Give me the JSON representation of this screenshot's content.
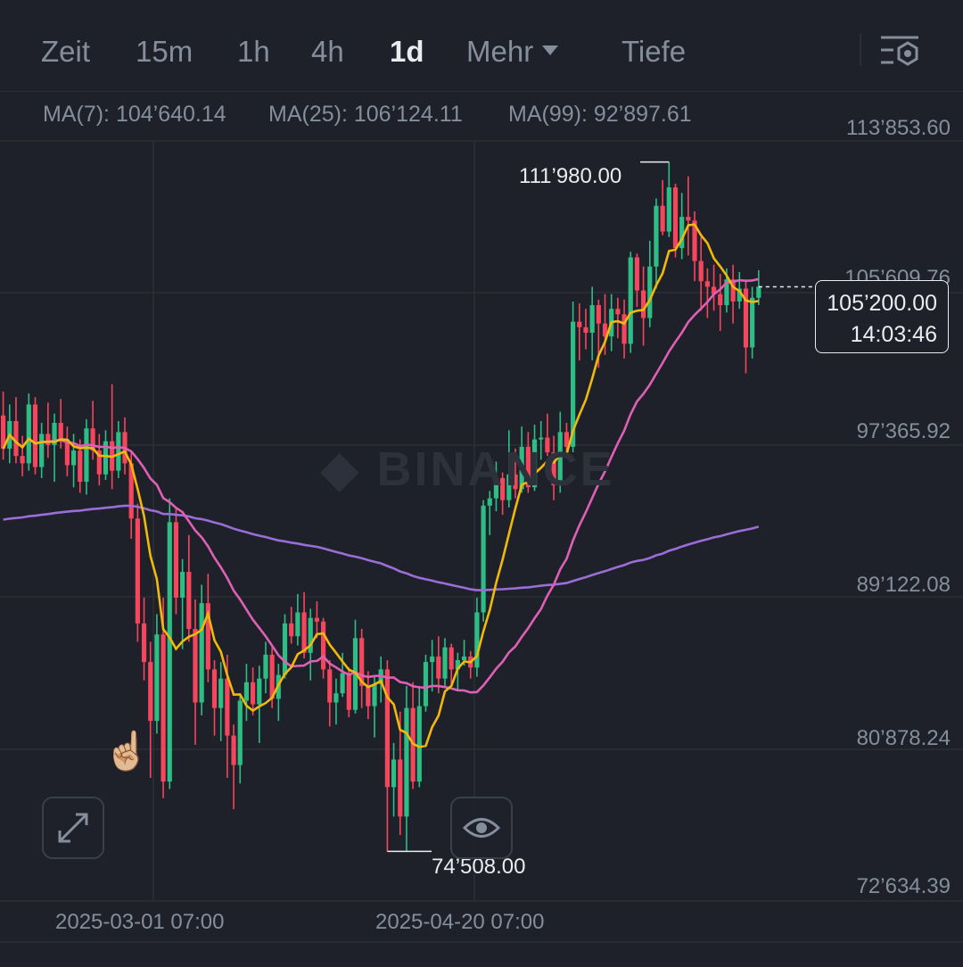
{
  "toolbar": {
    "tabs": [
      {
        "label": "Zeit",
        "active": false
      },
      {
        "label": "15m",
        "active": false
      },
      {
        "label": "1h",
        "active": false
      },
      {
        "label": "4h",
        "active": false
      },
      {
        "label": "1d",
        "active": true
      },
      {
        "label": "Mehr",
        "active": false
      },
      {
        "label": "Tiefe",
        "active": false
      }
    ],
    "settings_icon": "chart-settings-icon"
  },
  "legend": {
    "ma7": "MA(7): 104’640.14",
    "ma25": "MA(25): 106’124.11",
    "ma99": "MA(99): 92’897.61",
    "colors": {
      "ma7": "#f0b90b",
      "ma25": "#e05fb6",
      "ma99": "#9b6dd6"
    }
  },
  "price_axis": [
    "113’853.60",
    "105’609.76",
    "97’365.92",
    "89’122.08",
    "80’878.24",
    "72’634.39"
  ],
  "date_axis": [
    "2025-03-01 07:00",
    "2025-04-20 07:00"
  ],
  "chart": {
    "high_label": "111’980.00",
    "low_label": "74’508.00",
    "current_price": "105’200.00",
    "countdown": "14:03:46"
  },
  "watermark": "BINANCE",
  "buttons": {
    "expand_icon": "expand-icon",
    "visibility_icon": "eye-icon"
  },
  "colors": {
    "up": "#2ebd85",
    "down": "#f6465d",
    "background": "#1e2129"
  },
  "chart_data": {
    "type": "candlestick",
    "timeframe": "1d",
    "price_range": [
      72634.39,
      113853.6
    ],
    "x_ticks": [
      "2025-03-01 07:00",
      "2025-04-20 07:00"
    ],
    "high": 111980.0,
    "low": 74508.0,
    "last": 105200.0,
    "ma": [
      {
        "name": "MA(7)",
        "value": 104640.14
      },
      {
        "name": "MA(25)",
        "value": 106124.11
      },
      {
        "name": "MA(99)",
        "value": 92897.61
      }
    ],
    "candles": [
      [
        98200,
        99500,
        95800,
        96400
      ],
      [
        96400,
        98800,
        95600,
        97900
      ],
      [
        97900,
        99200,
        95600,
        96000
      ],
      [
        96000,
        97100,
        94900,
        95600
      ],
      [
        95600,
        99400,
        95200,
        98800
      ],
      [
        98800,
        99200,
        95000,
        95400
      ],
      [
        95400,
        97800,
        94800,
        97200
      ],
      [
        97200,
        98900,
        95900,
        96600
      ],
      [
        96600,
        98300,
        94600,
        97800
      ],
      [
        97800,
        99100,
        96400,
        96900
      ],
      [
        96900,
        97600,
        94900,
        95500
      ],
      [
        95500,
        97200,
        94300,
        96300
      ],
      [
        96300,
        96900,
        94000,
        94600
      ],
      [
        94600,
        98000,
        93900,
        97500
      ],
      [
        97500,
        99000,
        95800,
        96300
      ],
      [
        96300,
        97200,
        94400,
        95000
      ],
      [
        95000,
        97400,
        94700,
        96800
      ],
      [
        96800,
        99900,
        94200,
        95200
      ],
      [
        95200,
        97900,
        94800,
        97300
      ],
      [
        97300,
        98100,
        95000,
        95600
      ],
      [
        95600,
        96200,
        91500,
        92600
      ],
      [
        92600,
        93400,
        85900,
        86900
      ],
      [
        86900,
        88300,
        83800,
        84800
      ],
      [
        84800,
        85900,
        78500,
        81600
      ],
      [
        81600,
        87400,
        80900,
        86300
      ],
      [
        86300,
        88300,
        77400,
        78300
      ],
      [
        78300,
        93700,
        77900,
        92400
      ],
      [
        92400,
        93200,
        87400,
        88300
      ],
      [
        88300,
        90400,
        85500,
        89700
      ],
      [
        89700,
        91700,
        85900,
        86600
      ],
      [
        86600,
        88200,
        80300,
        82600
      ],
      [
        82600,
        89000,
        81900,
        88000
      ],
      [
        88000,
        89600,
        83700,
        84400
      ],
      [
        84400,
        84900,
        80800,
        82300
      ],
      [
        82300,
        84800,
        80500,
        83900
      ],
      [
        83900,
        85200,
        78500,
        80800
      ],
      [
        80800,
        81400,
        76800,
        79200
      ],
      [
        79200,
        83000,
        78200,
        82700
      ],
      [
        82700,
        84700,
        81600,
        83700
      ],
      [
        83700,
        84500,
        81900,
        82500
      ],
      [
        82500,
        84600,
        80400,
        83900
      ],
      [
        83900,
        85900,
        83100,
        85200
      ],
      [
        85200,
        85600,
        82300,
        82800
      ],
      [
        82800,
        84700,
        81600,
        84100
      ],
      [
        84100,
        87400,
        83900,
        86900
      ],
      [
        86900,
        87800,
        85800,
        86200
      ],
      [
        86200,
        88500,
        85700,
        87500
      ],
      [
        87500,
        88600,
        85000,
        85300
      ],
      [
        85300,
        87700,
        83800,
        87200
      ],
      [
        87200,
        88100,
        86100,
        87000
      ],
      [
        87000,
        87200,
        83900,
        84400
      ],
      [
        84400,
        84900,
        81300,
        82600
      ],
      [
        82600,
        83900,
        81400,
        83100
      ],
      [
        83100,
        85300,
        82900,
        84200
      ],
      [
        84200,
        84500,
        81800,
        82200
      ],
      [
        82200,
        87100,
        82000,
        86100
      ],
      [
        86100,
        86600,
        82300,
        83500
      ],
      [
        83500,
        84300,
        81700,
        82400
      ],
      [
        82400,
        84000,
        80700,
        83600
      ],
      [
        83600,
        85100,
        82600,
        84400
      ],
      [
        84400,
        84900,
        74500,
        78000
      ],
      [
        78000,
        80400,
        76400,
        79500
      ],
      [
        79500,
        82100,
        75400,
        76400
      ],
      [
        76400,
        83500,
        74500,
        82300
      ],
      [
        82300,
        83700,
        77900,
        78300
      ],
      [
        78300,
        83500,
        78000,
        82400
      ],
      [
        82400,
        85200,
        82100,
        84800
      ],
      [
        84800,
        86000,
        83200,
        85100
      ],
      [
        85100,
        86200,
        83100,
        83900
      ],
      [
        83900,
        86100,
        83400,
        85600
      ],
      [
        85600,
        85800,
        83600,
        84400
      ],
      [
        84400,
        85300,
        83200,
        84900
      ],
      [
        84900,
        86000,
        84600,
        85100
      ],
      [
        85100,
        85400,
        83900,
        84500
      ],
      [
        84500,
        88300,
        84000,
        87500
      ],
      [
        87500,
        93600,
        87000,
        93300
      ],
      [
        93300,
        94100,
        91700,
        93700
      ],
      [
        93700,
        95700,
        93000,
        94800
      ],
      [
        94800,
        95100,
        92800,
        93600
      ],
      [
        93600,
        97400,
        93200,
        95000
      ],
      [
        95000,
        96400,
        93700,
        94200
      ],
      [
        94200,
        97600,
        94000,
        96500
      ],
      [
        96500,
        97300,
        94000,
        94300
      ],
      [
        94300,
        97700,
        94100,
        96900
      ],
      [
        96900,
        97900,
        95800,
        97000
      ],
      [
        97000,
        98300,
        96000,
        96200
      ],
      [
        96200,
        97100,
        93600,
        94400
      ],
      [
        94400,
        98400,
        94000,
        97300
      ],
      [
        97300,
        97800,
        95900,
        96500
      ],
      [
        96500,
        104400,
        96200,
        103300
      ],
      [
        103300,
        104300,
        101200,
        103000
      ],
      [
        103000,
        104000,
        101800,
        102700
      ],
      [
        102700,
        105200,
        101200,
        104200
      ],
      [
        104200,
        104500,
        100800,
        103200
      ],
      [
        103200,
        104800,
        101500,
        102500
      ],
      [
        102500,
        104800,
        101700,
        104000
      ],
      [
        104000,
        104600,
        102400,
        103700
      ],
      [
        103700,
        104500,
        101300,
        102100
      ],
      [
        102100,
        107100,
        101600,
        106800
      ],
      [
        106800,
        107000,
        104100,
        105000
      ],
      [
        105000,
        106300,
        102000,
        103500
      ],
      [
        103500,
        107700,
        103000,
        106300
      ],
      [
        106300,
        110000,
        105100,
        109600
      ],
      [
        109600,
        111000,
        108000,
        108200
      ],
      [
        108200,
        111980,
        107900,
        110600
      ],
      [
        110600,
        110800,
        106800,
        107300
      ],
      [
        107300,
        110300,
        106700,
        109000
      ],
      [
        109000,
        111200,
        106900,
        108800
      ],
      [
        108800,
        109300,
        105500,
        106600
      ],
      [
        106600,
        107900,
        103900,
        105500
      ],
      [
        105500,
        106200,
        103500,
        105200
      ],
      [
        105200,
        106400,
        103900,
        104800
      ],
      [
        104800,
        105900,
        102800,
        104200
      ],
      [
        104200,
        106200,
        103800,
        105600
      ],
      [
        105600,
        106400,
        103200,
        104400
      ],
      [
        104400,
        106000,
        104000,
        105100
      ],
      [
        105100,
        105600,
        100500,
        101900
      ],
      [
        101900,
        105200,
        101300,
        104600
      ],
      [
        104600,
        106100,
        104200,
        105200
      ]
    ]
  }
}
